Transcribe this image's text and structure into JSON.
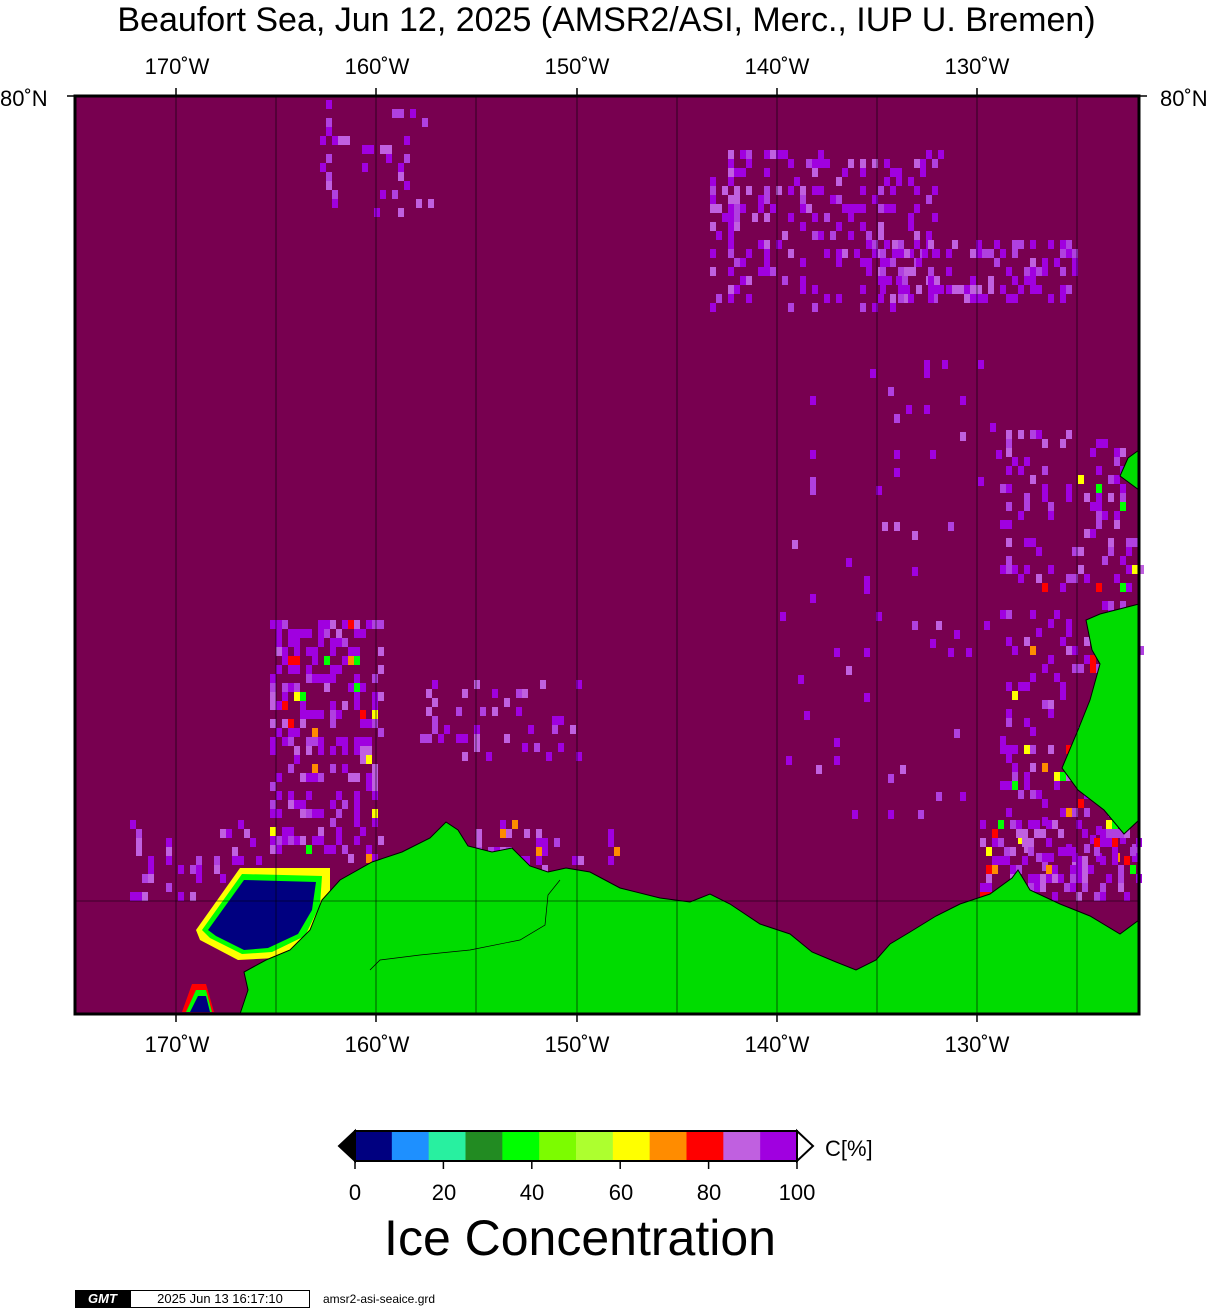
{
  "title": "Beaufort Sea, Jun 12, 2025 (AMSR2/ASI, Merc., IUP U. Bremen)",
  "map": {
    "projection": "Mercator",
    "longitude_labels": [
      "170˚W",
      "160˚W",
      "150˚W",
      "140˚W",
      "130˚W"
    ],
    "latitude_label": "80˚N",
    "graticule": "on",
    "colors": {
      "open_water_high_conc": "#780050",
      "land": "#00dc00",
      "coast_line": "#000000"
    }
  },
  "colorbar": {
    "label": "Ice Concentration",
    "unit": "C[%]",
    "ticks": [
      "0",
      "20",
      "40",
      "60",
      "80",
      "100"
    ],
    "colors": [
      "#000080",
      "#1e90ff",
      "#28f0a0",
      "#228b22",
      "#00ff00",
      "#7cfc00",
      "#adff2f",
      "#ffff00",
      "#ff8c00",
      "#ff0000",
      "#c060e0",
      "#a000e0"
    ]
  },
  "footer": {
    "logo": "GMT",
    "timestamp": "2025 Jun 13 16:17:10",
    "filename": "amsr2-asi-seaice.grd"
  }
}
